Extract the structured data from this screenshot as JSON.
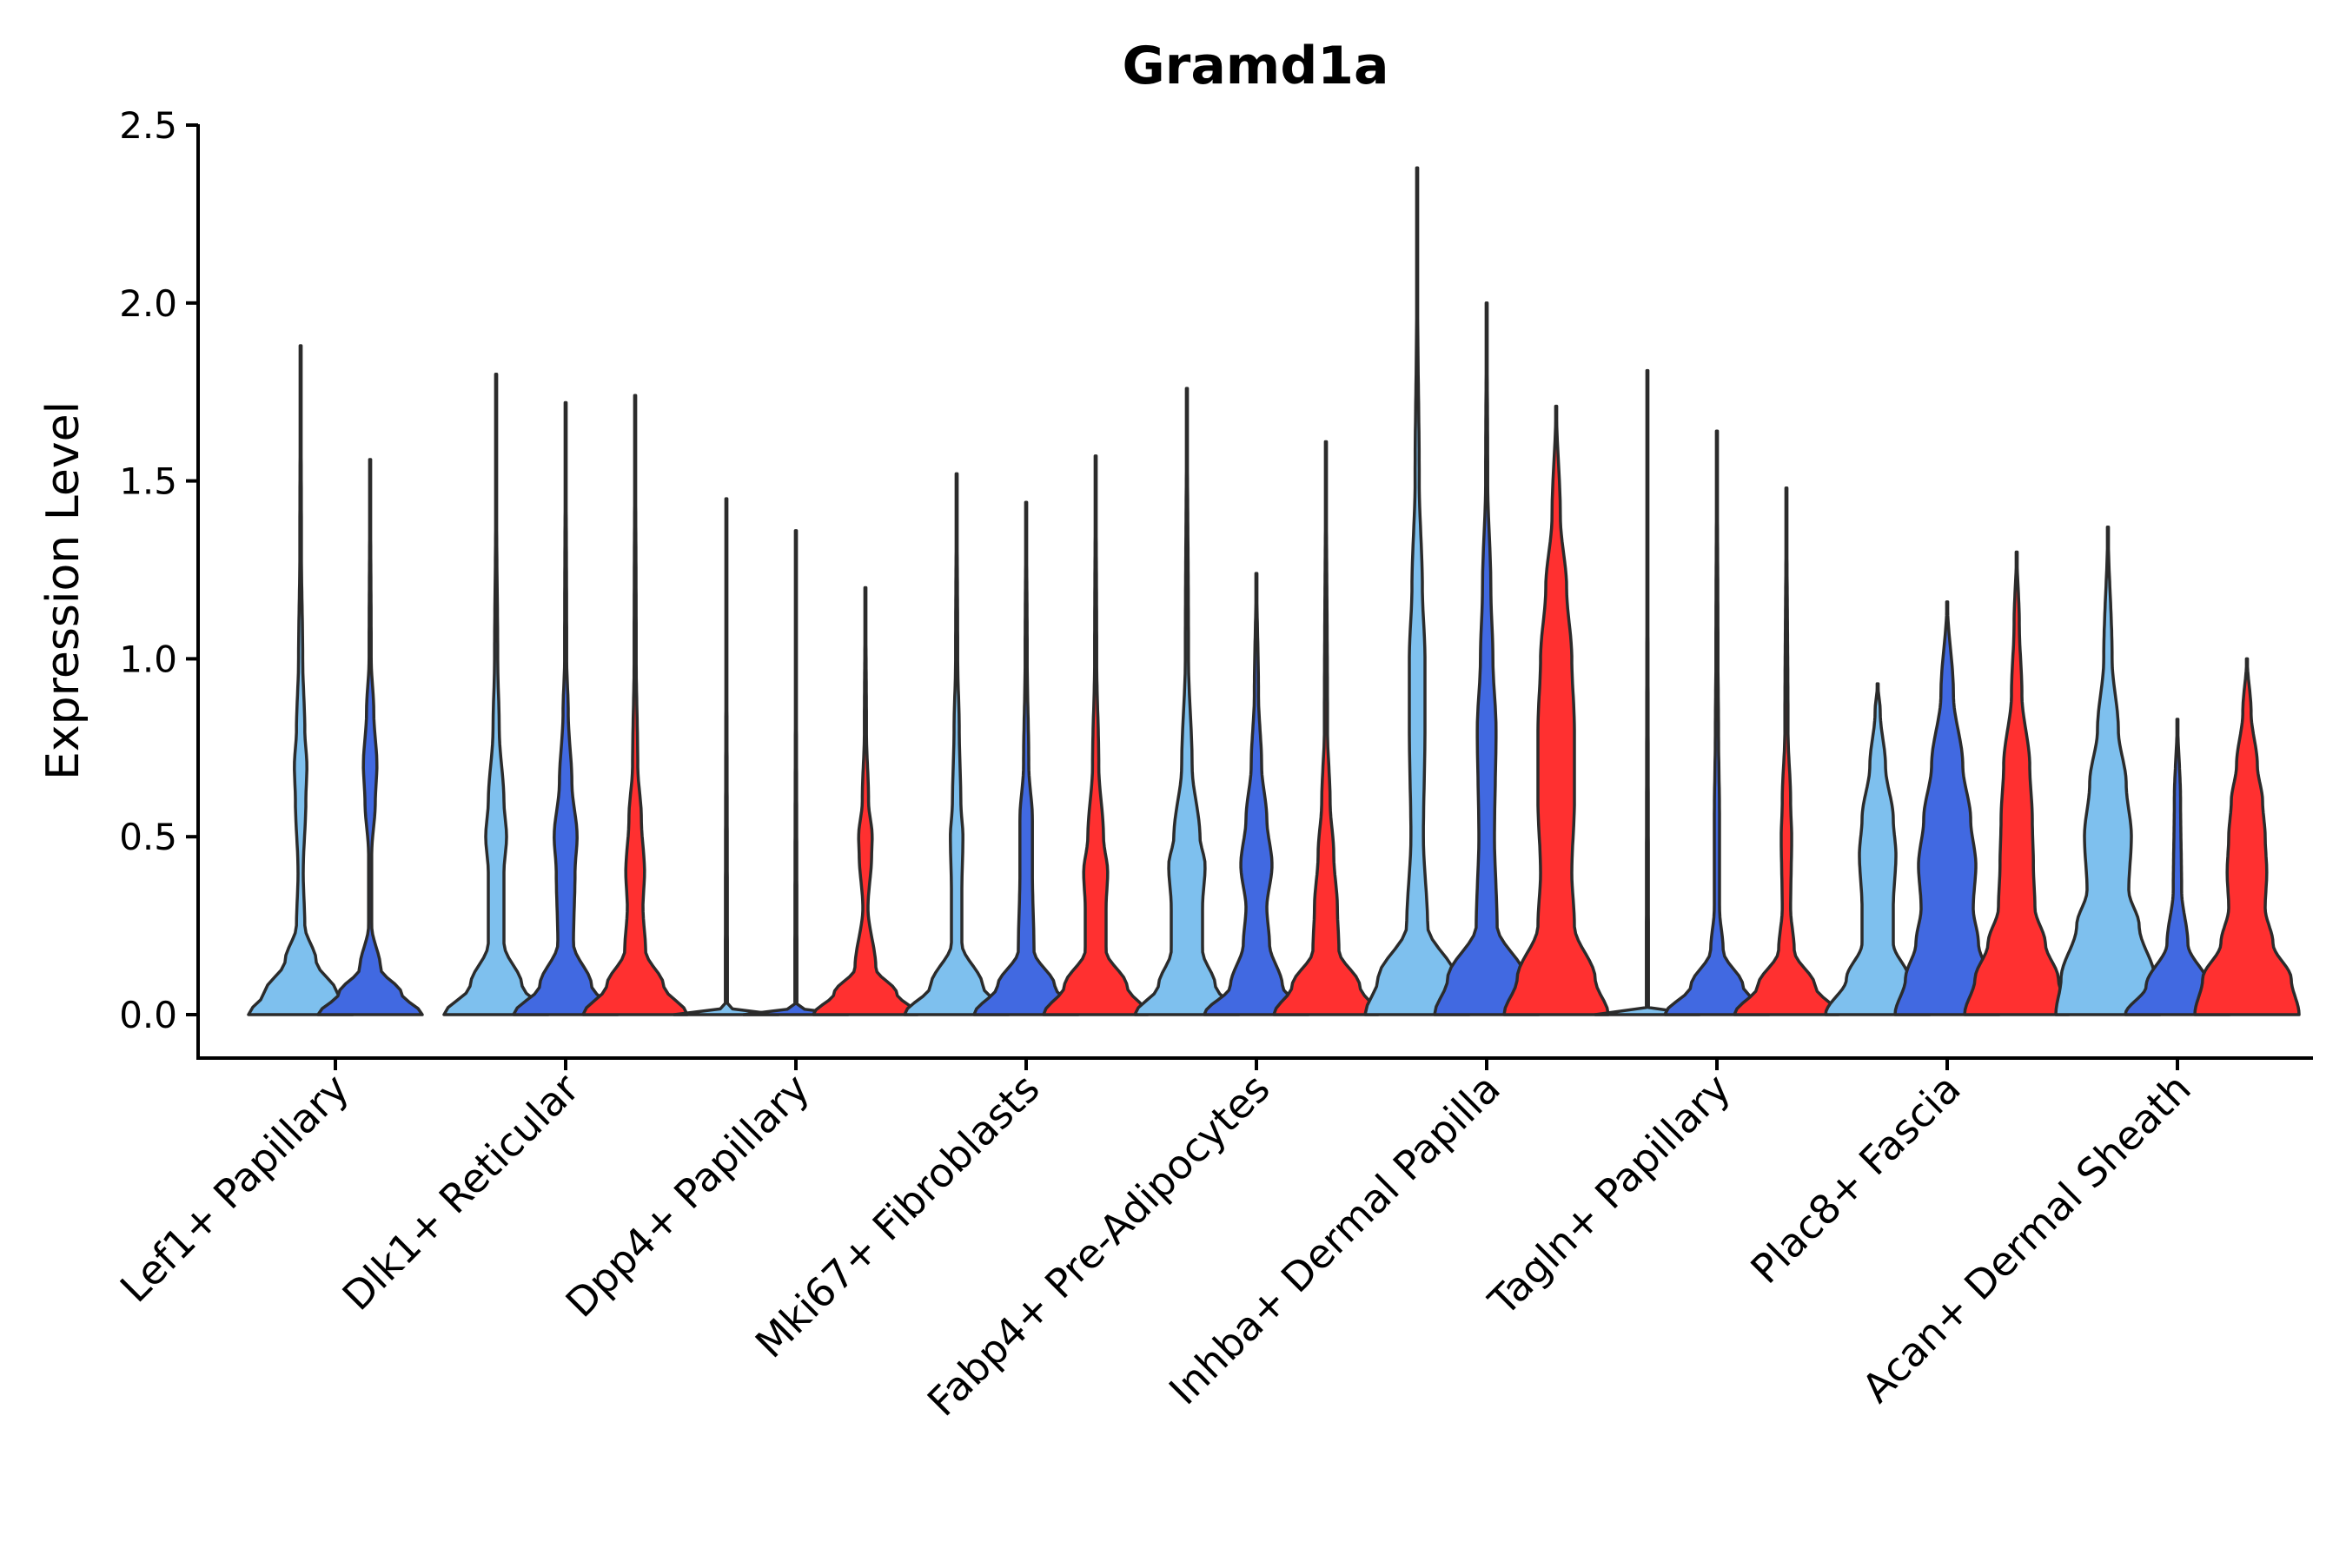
{
  "chart_data": {
    "type": "violin",
    "title": "Gramd1a",
    "xlabel": "",
    "ylabel": "Expression Level",
    "ylim": [
      -0.12,
      2.5
    ],
    "yticks": [
      0.0,
      0.5,
      1.0,
      1.5,
      2.0,
      2.5
    ],
    "ytick_labels": [
      "0.0",
      "0.5",
      "1.0",
      "1.5",
      "2.0",
      "2.5"
    ],
    "grid": false,
    "legend": "none",
    "colors": {
      "light_blue": "#7ec0ee",
      "royal_blue": "#4169e1",
      "red": "#ff3030",
      "outline": "#2b2b2b"
    },
    "categories": [
      "Lef1+ Papillary",
      "Dlk1+ Reticular",
      "Dpp4+ Papillary",
      "Mki67+ Fibroblasts",
      "Fabp4+ Pre-Adipocytes",
      "Inhba+ Dermal Papilla",
      "Tagln+ Papillary",
      "Plac8+ Fascia",
      "Acan+ Dermal Sheath"
    ],
    "violins": [
      {
        "category": "Lef1+ Papillary",
        "color": "light_blue",
        "max": 1.88,
        "profile": [
          [
            0,
            1.0
          ],
          [
            0.06,
            0.7
          ],
          [
            0.15,
            0.3
          ],
          [
            0.25,
            0.08
          ],
          [
            0.4,
            0.05
          ],
          [
            0.6,
            0.1
          ],
          [
            0.7,
            0.12
          ],
          [
            0.8,
            0.08
          ],
          [
            1.0,
            0.04
          ],
          [
            1.3,
            0.015
          ],
          [
            1.88,
            0.005
          ]
        ]
      },
      {
        "category": "Lef1+ Papillary",
        "color": "royal_blue",
        "max": 1.56,
        "profile": [
          [
            0,
            1.0
          ],
          [
            0.06,
            0.6
          ],
          [
            0.13,
            0.2
          ],
          [
            0.25,
            0.03
          ],
          [
            0.45,
            0.03
          ],
          [
            0.6,
            0.1
          ],
          [
            0.7,
            0.13
          ],
          [
            0.85,
            0.07
          ],
          [
            1.0,
            0.02
          ],
          [
            1.56,
            0.005
          ]
        ]
      },
      {
        "category": "Dlk1+ Reticular",
        "color": "light_blue",
        "max": 1.8,
        "profile": [
          [
            0,
            1.0
          ],
          [
            0.08,
            0.5
          ],
          [
            0.2,
            0.15
          ],
          [
            0.4,
            0.15
          ],
          [
            0.5,
            0.2
          ],
          [
            0.6,
            0.15
          ],
          [
            0.8,
            0.06
          ],
          [
            1.0,
            0.03
          ],
          [
            1.4,
            0.01
          ],
          [
            1.8,
            0.005
          ]
        ]
      },
      {
        "category": "Dlk1+ Reticular",
        "color": "royal_blue",
        "max": 1.72,
        "profile": [
          [
            0,
            1.0
          ],
          [
            0.08,
            0.5
          ],
          [
            0.2,
            0.15
          ],
          [
            0.4,
            0.18
          ],
          [
            0.5,
            0.22
          ],
          [
            0.65,
            0.12
          ],
          [
            0.85,
            0.05
          ],
          [
            1.0,
            0.02
          ],
          [
            1.72,
            0.005
          ]
        ]
      },
      {
        "category": "Dlk1+ Reticular",
        "color": "red",
        "max": 1.74,
        "profile": [
          [
            0,
            1.0
          ],
          [
            0.08,
            0.55
          ],
          [
            0.18,
            0.2
          ],
          [
            0.3,
            0.15
          ],
          [
            0.4,
            0.18
          ],
          [
            0.55,
            0.12
          ],
          [
            0.7,
            0.05
          ],
          [
            1.0,
            0.02
          ],
          [
            1.74,
            0.005
          ]
        ]
      },
      {
        "category": "Dpp4+ Papillary",
        "color": "light_blue",
        "max": 1.45,
        "profile": [
          [
            0,
            1.0
          ],
          [
            0.02,
            0.02
          ],
          [
            1.45,
            0.005
          ]
        ]
      },
      {
        "category": "Dpp4+ Papillary",
        "color": "royal_blue",
        "max": 1.36,
        "profile": [
          [
            0,
            1.0
          ],
          [
            0.02,
            0.02
          ],
          [
            1.36,
            0.005
          ]
        ]
      },
      {
        "category": "Dpp4+ Papillary",
        "color": "red",
        "max": 1.2,
        "profile": [
          [
            0,
            1.0
          ],
          [
            0.06,
            0.6
          ],
          [
            0.13,
            0.2
          ],
          [
            0.3,
            0.05
          ],
          [
            0.45,
            0.12
          ],
          [
            0.5,
            0.13
          ],
          [
            0.6,
            0.06
          ],
          [
            0.8,
            0.02
          ],
          [
            1.2,
            0.005
          ]
        ]
      },
      {
        "category": "Mki67+ Fibroblasts",
        "color": "light_blue",
        "max": 1.52,
        "profile": [
          [
            0,
            1.0
          ],
          [
            0.08,
            0.5
          ],
          [
            0.2,
            0.1
          ],
          [
            0.35,
            0.1
          ],
          [
            0.5,
            0.12
          ],
          [
            0.6,
            0.08
          ],
          [
            0.8,
            0.05
          ],
          [
            1.0,
            0.02
          ],
          [
            1.52,
            0.005
          ]
        ]
      },
      {
        "category": "Mki67+ Fibroblasts",
        "color": "royal_blue",
        "max": 1.44,
        "profile": [
          [
            0,
            1.0
          ],
          [
            0.08,
            0.55
          ],
          [
            0.18,
            0.15
          ],
          [
            0.4,
            0.12
          ],
          [
            0.55,
            0.12
          ],
          [
            0.7,
            0.05
          ],
          [
            1.0,
            0.02
          ],
          [
            1.44,
            0.005
          ]
        ]
      },
      {
        "category": "Mki67+ Fibroblasts",
        "color": "red",
        "max": 1.57,
        "profile": [
          [
            0,
            1.0
          ],
          [
            0.08,
            0.6
          ],
          [
            0.18,
            0.2
          ],
          [
            0.3,
            0.2
          ],
          [
            0.4,
            0.23
          ],
          [
            0.5,
            0.15
          ],
          [
            0.7,
            0.06
          ],
          [
            1.0,
            0.02
          ],
          [
            1.57,
            0.005
          ]
        ]
      },
      {
        "category": "Fabp4+ Pre-Adipocytes",
        "color": "light_blue",
        "max": 1.76,
        "profile": [
          [
            0,
            1.0
          ],
          [
            0.08,
            0.55
          ],
          [
            0.18,
            0.3
          ],
          [
            0.3,
            0.3
          ],
          [
            0.42,
            0.35
          ],
          [
            0.5,
            0.25
          ],
          [
            0.7,
            0.1
          ],
          [
            1.0,
            0.03
          ],
          [
            1.76,
            0.005
          ]
        ]
      },
      {
        "category": "Fabp4+ Pre-Adipocytes",
        "color": "royal_blue",
        "max": 1.24,
        "profile": [
          [
            0,
            1.0
          ],
          [
            0.08,
            0.5
          ],
          [
            0.2,
            0.25
          ],
          [
            0.3,
            0.2
          ],
          [
            0.42,
            0.3
          ],
          [
            0.55,
            0.2
          ],
          [
            0.7,
            0.1
          ],
          [
            0.9,
            0.04
          ],
          [
            1.24,
            0.005
          ]
        ]
      },
      {
        "category": "Fabp4+ Pre-Adipocytes",
        "color": "red",
        "max": 1.61,
        "profile": [
          [
            0,
            1.0
          ],
          [
            0.08,
            0.65
          ],
          [
            0.18,
            0.25
          ],
          [
            0.3,
            0.22
          ],
          [
            0.45,
            0.15
          ],
          [
            0.6,
            0.08
          ],
          [
            0.8,
            0.03
          ],
          [
            1.61,
            0.005
          ]
        ]
      },
      {
        "category": "Inhba+ Dermal Papilla",
        "color": "light_blue",
        "max": 2.38,
        "profile": [
          [
            0,
            1.0
          ],
          [
            0.1,
            0.75
          ],
          [
            0.25,
            0.2
          ],
          [
            0.5,
            0.12
          ],
          [
            0.8,
            0.15
          ],
          [
            1.0,
            0.15
          ],
          [
            1.2,
            0.1
          ],
          [
            1.5,
            0.04
          ],
          [
            2.0,
            0.01
          ],
          [
            2.38,
            0.005
          ]
        ]
      },
      {
        "category": "Inhba+ Dermal Papilla",
        "color": "royal_blue",
        "max": 2.0,
        "profile": [
          [
            0,
            1.0
          ],
          [
            0.1,
            0.75
          ],
          [
            0.25,
            0.2
          ],
          [
            0.5,
            0.15
          ],
          [
            0.8,
            0.18
          ],
          [
            1.0,
            0.12
          ],
          [
            1.2,
            0.08
          ],
          [
            1.5,
            0.02
          ],
          [
            2.0,
            0.005
          ]
        ]
      },
      {
        "category": "Inhba+ Dermal Papilla",
        "color": "red",
        "max": 1.71,
        "profile": [
          [
            0,
            1.0
          ],
          [
            0.1,
            0.75
          ],
          [
            0.25,
            0.35
          ],
          [
            0.4,
            0.3
          ],
          [
            0.6,
            0.35
          ],
          [
            0.8,
            0.35
          ],
          [
            1.0,
            0.3
          ],
          [
            1.2,
            0.2
          ],
          [
            1.4,
            0.08
          ],
          [
            1.71,
            0.005
          ]
        ]
      },
      {
        "category": "Tagln+ Papillary",
        "color": "light_blue",
        "max": 1.81,
        "profile": [
          [
            0,
            1.0
          ],
          [
            0.02,
            0.02
          ],
          [
            1.81,
            0.005
          ]
        ]
      },
      {
        "category": "Tagln+ Papillary",
        "color": "royal_blue",
        "max": 1.64,
        "profile": [
          [
            0,
            1.0
          ],
          [
            0.08,
            0.5
          ],
          [
            0.18,
            0.12
          ],
          [
            0.3,
            0.05
          ],
          [
            0.55,
            0.05
          ],
          [
            0.8,
            0.03
          ],
          [
            1.0,
            0.02
          ],
          [
            1.64,
            0.005
          ]
        ]
      },
      {
        "category": "Tagln+ Papillary",
        "color": "red",
        "max": 1.48,
        "profile": [
          [
            0,
            1.0
          ],
          [
            0.08,
            0.55
          ],
          [
            0.18,
            0.15
          ],
          [
            0.3,
            0.08
          ],
          [
            0.5,
            0.1
          ],
          [
            0.6,
            0.08
          ],
          [
            0.8,
            0.03
          ],
          [
            1.48,
            0.005
          ]
        ]
      },
      {
        "category": "Plac8+ Fascia",
        "color": "light_blue",
        "max": 0.93,
        "profile": [
          [
            0,
            1.0
          ],
          [
            0.1,
            0.6
          ],
          [
            0.2,
            0.3
          ],
          [
            0.3,
            0.3
          ],
          [
            0.45,
            0.35
          ],
          [
            0.55,
            0.3
          ],
          [
            0.7,
            0.15
          ],
          [
            0.85,
            0.05
          ],
          [
            0.93,
            0.005
          ]
        ]
      },
      {
        "category": "Plac8+ Fascia",
        "color": "royal_blue",
        "max": 1.16,
        "profile": [
          [
            0,
            1.0
          ],
          [
            0.1,
            0.8
          ],
          [
            0.2,
            0.6
          ],
          [
            0.3,
            0.5
          ],
          [
            0.42,
            0.55
          ],
          [
            0.55,
            0.45
          ],
          [
            0.7,
            0.3
          ],
          [
            0.9,
            0.12
          ],
          [
            1.16,
            0.005
          ]
        ]
      },
      {
        "category": "Plac8+ Fascia",
        "color": "red",
        "max": 1.3,
        "profile": [
          [
            0,
            1.0
          ],
          [
            0.1,
            0.8
          ],
          [
            0.2,
            0.55
          ],
          [
            0.3,
            0.35
          ],
          [
            0.42,
            0.32
          ],
          [
            0.55,
            0.3
          ],
          [
            0.7,
            0.25
          ],
          [
            0.9,
            0.1
          ],
          [
            1.1,
            0.05
          ],
          [
            1.3,
            0.005
          ]
        ]
      },
      {
        "category": "Acan+ Dermal Sheath",
        "color": "light_blue",
        "max": 1.37,
        "profile": [
          [
            0,
            1.0
          ],
          [
            0.1,
            0.9
          ],
          [
            0.25,
            0.6
          ],
          [
            0.35,
            0.4
          ],
          [
            0.5,
            0.45
          ],
          [
            0.65,
            0.35
          ],
          [
            0.8,
            0.2
          ],
          [
            1.0,
            0.08
          ],
          [
            1.37,
            0.005
          ]
        ]
      },
      {
        "category": "Acan+ Dermal Sheath",
        "color": "royal_blue",
        "max": 0.83,
        "profile": [
          [
            0,
            1.0
          ],
          [
            0.08,
            0.6
          ],
          [
            0.2,
            0.2
          ],
          [
            0.35,
            0.08
          ],
          [
            0.6,
            0.06
          ],
          [
            0.83,
            0.005
          ]
        ]
      },
      {
        "category": "Acan+ Dermal Sheath",
        "color": "red",
        "max": 1.0,
        "profile": [
          [
            0,
            1.0
          ],
          [
            0.1,
            0.85
          ],
          [
            0.2,
            0.5
          ],
          [
            0.3,
            0.35
          ],
          [
            0.4,
            0.38
          ],
          [
            0.5,
            0.35
          ],
          [
            0.6,
            0.3
          ],
          [
            0.7,
            0.2
          ],
          [
            0.85,
            0.08
          ],
          [
            1.0,
            0.005
          ]
        ]
      }
    ]
  }
}
